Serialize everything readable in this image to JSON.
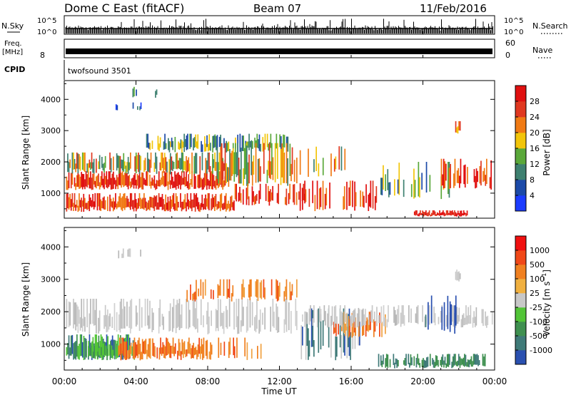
{
  "header": {
    "site": "Dome C East (fitACF)",
    "beam": "Beam 07",
    "date": "11/Feb/2016"
  },
  "panels": {
    "nsky": {
      "label": "N.Sky",
      "ytick_top": "10^5",
      "ytick_bottom": "10^0",
      "right_tick_top": "10^5",
      "right_tick_bottom": "10^0",
      "right_label": "N.Search"
    },
    "freq": {
      "label_top": "Freq.",
      "label_unit": "[MHz]",
      "ytick": "8",
      "right_tick_top": "60",
      "right_tick_bottom": "0",
      "right_label": "Nave"
    },
    "cpid": {
      "label": "CPID",
      "value": "twofsound 3501"
    }
  },
  "chart_data": [
    {
      "type": "heatmap",
      "name": "power",
      "ylabel": "Slant Range [km]",
      "yticks": [
        "1000",
        "2000",
        "3000",
        "4000"
      ],
      "ylim": [
        200,
        4600
      ],
      "xlim": [
        0,
        24
      ],
      "colorbar": {
        "label": "Power [dB]",
        "ticks": [
          "4",
          "8",
          "12",
          "16",
          "20",
          "24",
          "28"
        ],
        "range": [
          0,
          32
        ],
        "colors": [
          "#1c3cff",
          "#1c4aa8",
          "#3e8070",
          "#5aa83a",
          "#f2c50a",
          "#f07a14",
          "#e03820",
          "#e01010"
        ]
      }
    },
    {
      "type": "heatmap",
      "name": "velocity",
      "ylabel": "Slant Range [km]",
      "yticks": [
        "1000",
        "2000",
        "3000",
        "4000"
      ],
      "ylim": [
        200,
        4600
      ],
      "xlim": [
        0,
        24
      ],
      "colorbar": {
        "label": "Velocity [m s^-1]",
        "ticks": [
          "1000",
          "500",
          "100",
          "25",
          "-25",
          "-100",
          "-500",
          "-1000"
        ],
        "colors": [
          "#2a50b0",
          "#3f7a78",
          "#3f9050",
          "#52c437",
          "#c8c8c8",
          "#f0b040",
          "#f08020",
          "#f04818",
          "#f01010"
        ]
      }
    }
  ],
  "xaxis": {
    "ticks": [
      "00:00",
      "04:00",
      "08:00",
      "12:00",
      "16:00",
      "20:00",
      "00:00"
    ],
    "label": "Time UT"
  }
}
